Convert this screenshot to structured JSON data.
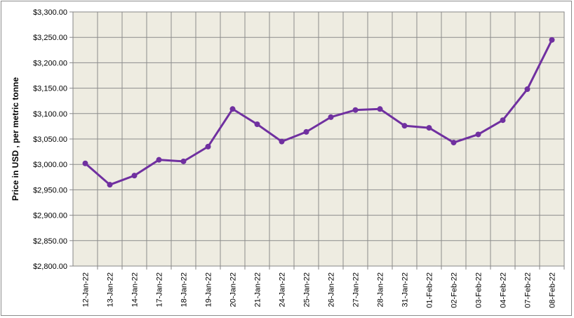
{
  "chart_data": {
    "type": "line",
    "title": "",
    "xlabel": "",
    "ylabel": "Price in USD , per metric tonne",
    "ylim": [
      2800,
      3300
    ],
    "y_ticks": [
      "$2,800.00",
      "$2,850.00",
      "$2,900.00",
      "$2,950.00",
      "$3,000.00",
      "$3,050.00",
      "$3,100.00",
      "$3,150.00",
      "$3,200.00",
      "$3,250.00",
      "$3,300.00"
    ],
    "y_tick_values": [
      2800,
      2850,
      2900,
      2950,
      3000,
      3050,
      3100,
      3150,
      3200,
      3250,
      3300
    ],
    "categories": [
      "12-Jan-22",
      "13-Jan-22",
      "14-Jan-22",
      "17-Jan-22",
      "18-Jan-22",
      "19-Jan-22",
      "20-Jan-22",
      "21-Jan-22",
      "24-Jan-22",
      "25-Jan-22",
      "26-Jan-22",
      "27-Jan-22",
      "28-Jan-22",
      "31-Jan-22",
      "01-Feb-22",
      "02-Feb-22",
      "03-Feb-22",
      "04-Feb-22",
      "07-Feb-22",
      "08-Feb-22"
    ],
    "series": [
      {
        "values": [
          3002,
          2960,
          2978,
          3009,
          3006,
          3035,
          3109,
          3079,
          3045,
          3064,
          3093,
          3107,
          3109,
          3076,
          3072,
          3043,
          3059,
          3087,
          3148,
          3245
        ],
        "color": "#7030a0"
      }
    ],
    "grid": true,
    "plot_background": "#eeece1",
    "gridline_color": "#8c8c8c"
  }
}
